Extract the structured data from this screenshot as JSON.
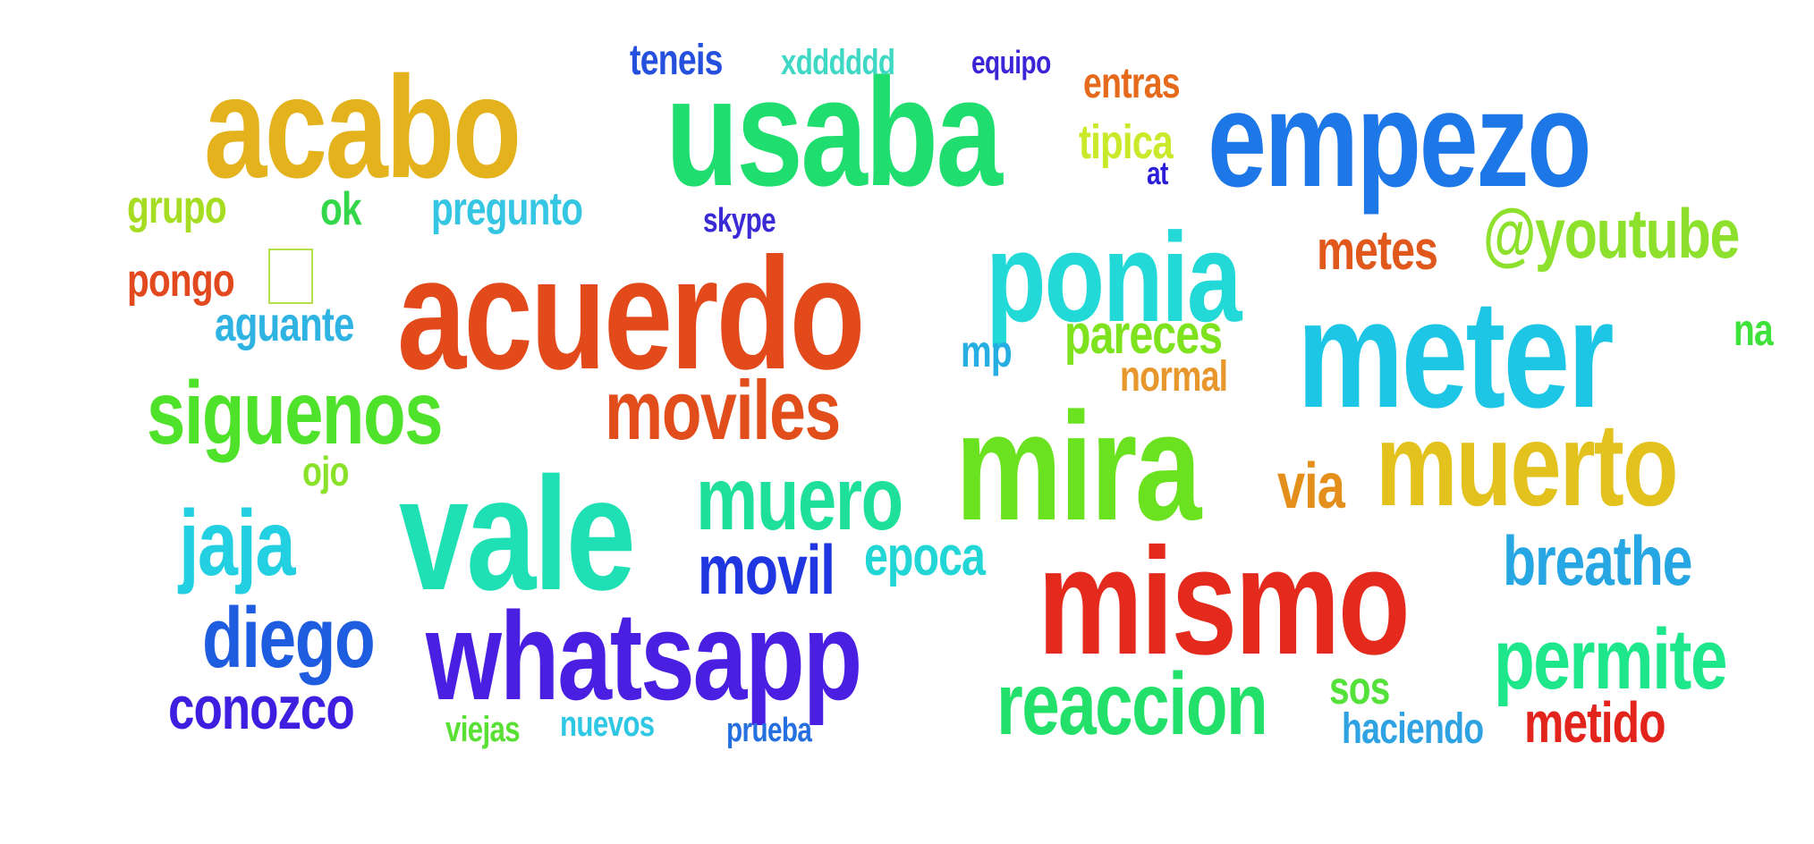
{
  "words": [
    {
      "text": "acabo",
      "color": "#e3b21c"
    },
    {
      "text": "usaba",
      "color": "#1fdd6e"
    },
    {
      "text": "empezo",
      "color": "#1e77e6"
    },
    {
      "text": "teneis",
      "color": "#2450dd"
    },
    {
      "text": "xdddddd",
      "color": "#3ed8c4"
    },
    {
      "text": "equipo",
      "color": "#3b24d6"
    },
    {
      "text": "entras",
      "color": "#e56a1c"
    },
    {
      "text": "tipica",
      "color": "#c9ea2a"
    },
    {
      "text": "at",
      "color": "#2a1ed8"
    },
    {
      "text": "grupo",
      "color": "#a6dd22"
    },
    {
      "text": "ok",
      "color": "#34d64a"
    },
    {
      "text": "pregunto",
      "color": "#35c6e3"
    },
    {
      "text": "skype",
      "color": "#3a2ad6"
    },
    {
      "text": "@youtube",
      "color": "#8de12c"
    },
    {
      "text": "pongo",
      "color": "#e2491e"
    },
    {
      "text": "acuerdo",
      "color": "#e24a1c"
    },
    {
      "text": "ponia",
      "color": "#22d9d8"
    },
    {
      "text": "metes",
      "color": "#e0581c"
    },
    {
      "text": "aguante",
      "color": "#2eb3e3"
    },
    {
      "text": "meter",
      "color": "#1ec6e6"
    },
    {
      "text": "na",
      "color": "#3ee23a"
    },
    {
      "text": "mp",
      "color": "#26aee3"
    },
    {
      "text": "pareces",
      "color": "#7ee21e"
    },
    {
      "text": "normal",
      "color": "#e7972c"
    },
    {
      "text": "siguenos",
      "color": "#4fe22a"
    },
    {
      "text": "moviles",
      "color": "#e24d1c"
    },
    {
      "text": "mira",
      "color": "#6be21f"
    },
    {
      "text": "muerto",
      "color": "#e3c21e"
    },
    {
      "text": "ojo",
      "color": "#8ae12a"
    },
    {
      "text": "via",
      "color": "#e48f1c"
    },
    {
      "text": "vale",
      "color": "#1fe0b4"
    },
    {
      "text": "muero",
      "color": "#1fe09b"
    },
    {
      "text": "jaja",
      "color": "#22d0e1"
    },
    {
      "text": "movil",
      "color": "#1f36e0"
    },
    {
      "text": "epoca",
      "color": "#21d6d4"
    },
    {
      "text": "mismo",
      "color": "#e32a1c"
    },
    {
      "text": "breathe",
      "color": "#26a6e2"
    },
    {
      "text": "diego",
      "color": "#1e5ce0"
    },
    {
      "text": "whatsapp",
      "color": "#4a1fe2"
    },
    {
      "text": "permite",
      "color": "#1ee68a"
    },
    {
      "text": "conozco",
      "color": "#3f1ee0"
    },
    {
      "text": "reaccion",
      "color": "#22e06a"
    },
    {
      "text": "sos",
      "color": "#54e23a"
    },
    {
      "text": "metido",
      "color": "#e2241c"
    },
    {
      "text": "viejas",
      "color": "#59e035"
    },
    {
      "text": "nuevos",
      "color": "#2ec7e4"
    },
    {
      "text": "prueba",
      "color": "#2470e0"
    },
    {
      "text": "haciendo",
      "color": "#2ea2e2"
    }
  ]
}
